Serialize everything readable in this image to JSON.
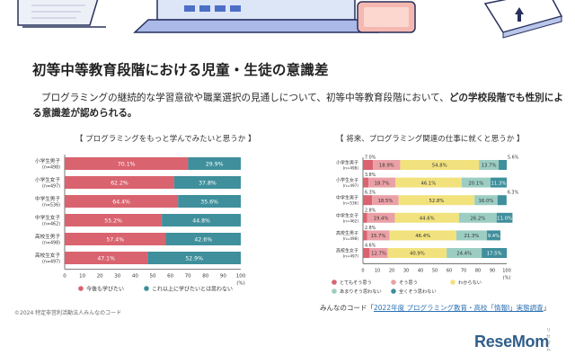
{
  "header": {
    "title": "初等中等教育段階における児童・生徒の意識差",
    "lead_prefix": "プログラミングの継続的な学習意欲や職業選択の見通しについて、初等中等教育段階において、",
    "lead_bold": "どの学校段階でも性別による意識差が認められる。"
  },
  "footer": {
    "copyright": "©2024 特定非営利活動法人みんなのコード",
    "source_prefix": "みんなのコード「",
    "source_link": "2022年度 プログラミング教育・高校「情報Ⅰ」実態調査",
    "source_suffix": "」",
    "logo": "ReseMom",
    "logo_kana": "リセマム"
  },
  "chart_data": [
    {
      "type": "bar",
      "title": "【 プログラミングをもっと学んでみたいと思うか 】",
      "categories": [
        "小学生男子",
        "小学生女子",
        "中学生男子",
        "中学生女子",
        "高校生男子",
        "高校生女子"
      ],
      "category_n": [
        "(n=498)",
        "(n=497)",
        "(n=536)",
        "(n=462)",
        "(n=498)",
        "(n=497)"
      ],
      "series": [
        {
          "name": "今後も学びたい",
          "values": [
            70.1,
            62.2,
            64.4,
            55.2,
            57.4,
            47.1
          ],
          "labels": [
            "70.1%",
            "62.2%",
            "64.4%",
            "55.2%",
            "57.4%",
            "47.1%"
          ],
          "color": "#d9636f"
        },
        {
          "name": "これ以上に学びたいとは思わない",
          "values": [
            29.9,
            37.8,
            35.6,
            44.8,
            42.6,
            52.9
          ],
          "labels": [
            "29.9%",
            "37.8%",
            "35.6%",
            "44.8%",
            "42.6%",
            "52.9%"
          ],
          "color": "#3f8f9c"
        }
      ],
      "ticks": [
        "0",
        "10",
        "20",
        "30",
        "40",
        "50",
        "60",
        "70",
        "80",
        "90",
        "100"
      ],
      "unit": "(%)",
      "xlim": [
        0,
        100
      ],
      "stacked": true,
      "legend_position": "bottom"
    },
    {
      "type": "bar",
      "title": "【 将来、プログラミング関連の仕事に就くと思うか 】",
      "categories": [
        "小学生男子",
        "小学生女子",
        "中学生男子",
        "中学生女子",
        "高校生男子",
        "高校生女子"
      ],
      "category_n": [
        "(n=498)",
        "(n=497)",
        "(n=536)",
        "(n=462)",
        "(n=498)",
        "(n=497)"
      ],
      "series": [
        {
          "name": "とてもそう思う",
          "values": [
            7.0,
            3.8,
            6.3,
            2.8,
            2.8,
            4.6
          ],
          "labels": [
            "7.0%",
            "3.8%",
            "6.3%",
            "2.8%",
            "2.8%",
            "4.6%"
          ],
          "color": "#d9636f"
        },
        {
          "name": "そう思う",
          "values": [
            18.9,
            18.7,
            18.5,
            19.4,
            15.7,
            12.7
          ],
          "labels": [
            "18.9%",
            "18.7%",
            "18.5%",
            "19.4%",
            "15.7%",
            "12.7%"
          ],
          "color": "#eaa0a6"
        },
        {
          "name": "わからない",
          "values": [
            54.8,
            46.1,
            52.8,
            44.6,
            46.4,
            40.9
          ],
          "labels": [
            "54.8%",
            "46.1%",
            "52.8%",
            "44.6%",
            "46.4%",
            "40.9%"
          ],
          "color": "#f2e27e"
        },
        {
          "name": "あまりそう思わない",
          "values": [
            13.7,
            20.1,
            16.0,
            26.2,
            21.3,
            24.4
          ],
          "labels": [
            "13.7%",
            "20.1%",
            "16.0%",
            "26.2%",
            "21.3%",
            "24.4%"
          ],
          "color": "#9ccdc2"
        },
        {
          "name": "全くそう思わない",
          "values": [
            5.6,
            11.3,
            6.3,
            11.0,
            9.4,
            17.5
          ],
          "labels": [
            "5.6%",
            "11.3%",
            "6.3%",
            "11.0%",
            "9.4%",
            "17.5%"
          ],
          "color": "#3f8f9c"
        }
      ],
      "ticks": [
        "0",
        "10",
        "20",
        "30",
        "40",
        "50",
        "60",
        "70",
        "80",
        "90",
        "100"
      ],
      "unit": "(%)",
      "xlim": [
        0,
        100
      ],
      "stacked": true,
      "legend_position": "bottom"
    }
  ]
}
